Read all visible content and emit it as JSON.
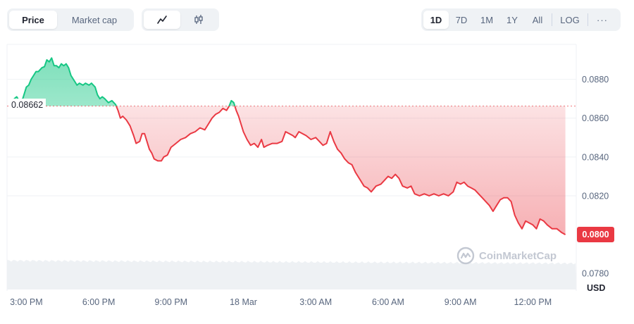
{
  "toolbar": {
    "metric_tabs": [
      {
        "label": "Price",
        "active": true
      },
      {
        "label": "Market cap",
        "active": false
      }
    ],
    "chart_type_icons": [
      {
        "icon": "line-chart-icon",
        "active": true
      },
      {
        "icon": "candlestick-icon",
        "active": false
      }
    ],
    "ranges": [
      "1D",
      "7D",
      "1M",
      "1Y",
      "All"
    ],
    "active_range": "1D",
    "log_label": "LOG",
    "more_label": "···"
  },
  "open_price_label": "0.08662",
  "current_price_label": "0.0800",
  "currency_label": "USD",
  "watermark_text": "CoinMarketCap",
  "colors": {
    "up": "#16c784",
    "down": "#ea3943",
    "grid": "#eff2f5",
    "volume": "#eef1f4"
  },
  "chart_data": {
    "type": "line",
    "title": "",
    "xlabel": "",
    "ylabel": "USD",
    "baseline": 0.08662,
    "ylim": [
      0.0771,
      0.0898
    ],
    "y_ticks": [
      "0.0880",
      "0.0860",
      "0.0840",
      "0.0820",
      "0.0780"
    ],
    "x_ticks": [
      "3:00 PM",
      "6:00 PM",
      "9:00 PM",
      "18 Mar",
      "3:00 AM",
      "6:00 AM",
      "9:00 AM",
      "12:00 PM"
    ],
    "x_tick_hours": [
      0,
      3,
      6,
      9,
      12,
      15,
      18,
      21
    ],
    "x_range_hours": [
      -0.8,
      22.8
    ],
    "grid": true,
    "series": [
      {
        "points": [
          [
            -0.6,
            0.08655
          ],
          [
            -0.5,
            0.087
          ],
          [
            -0.4,
            0.0871
          ],
          [
            -0.3,
            0.0869
          ],
          [
            -0.15,
            0.087
          ],
          [
            0.0,
            0.0876
          ],
          [
            0.1,
            0.0877
          ],
          [
            0.2,
            0.088
          ],
          [
            0.3,
            0.0882
          ],
          [
            0.4,
            0.0884
          ],
          [
            0.5,
            0.0884
          ],
          [
            0.65,
            0.0886
          ],
          [
            0.75,
            0.08865
          ],
          [
            0.85,
            0.089
          ],
          [
            0.95,
            0.0889
          ],
          [
            1.05,
            0.0891
          ],
          [
            1.15,
            0.0887
          ],
          [
            1.25,
            0.0887
          ],
          [
            1.35,
            0.0886
          ],
          [
            1.45,
            0.0888
          ],
          [
            1.55,
            0.0887
          ],
          [
            1.65,
            0.0888
          ],
          [
            1.75,
            0.0886
          ],
          [
            1.85,
            0.0882
          ],
          [
            2.0,
            0.0879
          ],
          [
            2.1,
            0.0877
          ],
          [
            2.2,
            0.0878
          ],
          [
            2.35,
            0.0877
          ],
          [
            2.45,
            0.0878
          ],
          [
            2.6,
            0.0877
          ],
          [
            2.7,
            0.0878
          ],
          [
            2.85,
            0.0876
          ],
          [
            2.95,
            0.0872
          ],
          [
            3.05,
            0.087
          ],
          [
            3.15,
            0.0871
          ],
          [
            3.25,
            0.087
          ],
          [
            3.4,
            0.0868
          ],
          [
            3.55,
            0.0869
          ],
          [
            3.7,
            0.0867
          ],
          [
            3.8,
            0.0864
          ],
          [
            3.9,
            0.086
          ],
          [
            4.0,
            0.0861
          ],
          [
            4.15,
            0.0859
          ],
          [
            4.3,
            0.0856
          ],
          [
            4.45,
            0.0851
          ],
          [
            4.55,
            0.0847
          ],
          [
            4.7,
            0.0848
          ],
          [
            4.8,
            0.0852
          ],
          [
            4.9,
            0.0852
          ],
          [
            5.0,
            0.0848
          ],
          [
            5.1,
            0.0844
          ],
          [
            5.2,
            0.0842
          ],
          [
            5.3,
            0.0839
          ],
          [
            5.45,
            0.0838
          ],
          [
            5.6,
            0.0838
          ],
          [
            5.7,
            0.084
          ],
          [
            5.85,
            0.0841
          ],
          [
            6.0,
            0.0845
          ],
          [
            6.2,
            0.0847
          ],
          [
            6.4,
            0.0849
          ],
          [
            6.6,
            0.085
          ],
          [
            6.8,
            0.0852
          ],
          [
            7.0,
            0.0853
          ],
          [
            7.2,
            0.0855
          ],
          [
            7.4,
            0.0854
          ],
          [
            7.55,
            0.0857
          ],
          [
            7.7,
            0.086
          ],
          [
            7.85,
            0.0862
          ],
          [
            8.0,
            0.0863
          ],
          [
            8.15,
            0.0865
          ],
          [
            8.3,
            0.0864
          ],
          [
            8.4,
            0.0866
          ],
          [
            8.5,
            0.0869
          ],
          [
            8.6,
            0.0868
          ],
          [
            8.7,
            0.0864
          ],
          [
            8.8,
            0.0861
          ],
          [
            8.9,
            0.0857
          ],
          [
            9.0,
            0.0853
          ],
          [
            9.15,
            0.0849
          ],
          [
            9.3,
            0.0846
          ],
          [
            9.45,
            0.0847
          ],
          [
            9.6,
            0.0845
          ],
          [
            9.75,
            0.0849
          ],
          [
            9.85,
            0.0845
          ],
          [
            10.0,
            0.0846
          ],
          [
            10.2,
            0.0847
          ],
          [
            10.4,
            0.0847
          ],
          [
            10.6,
            0.0848
          ],
          [
            10.75,
            0.0853
          ],
          [
            10.9,
            0.0852
          ],
          [
            11.05,
            0.0851
          ],
          [
            11.15,
            0.085
          ],
          [
            11.3,
            0.0853
          ],
          [
            11.45,
            0.0852
          ],
          [
            11.6,
            0.0851
          ],
          [
            11.8,
            0.0849
          ],
          [
            12.0,
            0.085
          ],
          [
            12.15,
            0.0848
          ],
          [
            12.3,
            0.0846
          ],
          [
            12.45,
            0.0847
          ],
          [
            12.6,
            0.0853
          ],
          [
            12.75,
            0.0848
          ],
          [
            12.9,
            0.0844
          ],
          [
            13.05,
            0.0842
          ],
          [
            13.2,
            0.0839
          ],
          [
            13.35,
            0.0837
          ],
          [
            13.5,
            0.0836
          ],
          [
            13.65,
            0.0832
          ],
          [
            13.85,
            0.0828
          ],
          [
            14.0,
            0.0825
          ],
          [
            14.15,
            0.0824
          ],
          [
            14.3,
            0.0822
          ],
          [
            14.5,
            0.0825
          ],
          [
            14.7,
            0.0826
          ],
          [
            14.85,
            0.0828
          ],
          [
            15.0,
            0.083
          ],
          [
            15.15,
            0.0829
          ],
          [
            15.3,
            0.0831
          ],
          [
            15.45,
            0.0829
          ],
          [
            15.6,
            0.0825
          ],
          [
            15.8,
            0.0824
          ],
          [
            15.95,
            0.0825
          ],
          [
            16.1,
            0.0821
          ],
          [
            16.3,
            0.082
          ],
          [
            16.5,
            0.0821
          ],
          [
            16.7,
            0.082
          ],
          [
            16.9,
            0.0821
          ],
          [
            17.1,
            0.082
          ],
          [
            17.3,
            0.0821
          ],
          [
            17.5,
            0.082
          ],
          [
            17.7,
            0.0822
          ],
          [
            17.85,
            0.0827
          ],
          [
            18.0,
            0.0826
          ],
          [
            18.15,
            0.0827
          ],
          [
            18.3,
            0.0825
          ],
          [
            18.45,
            0.0824
          ],
          [
            18.6,
            0.0823
          ],
          [
            18.75,
            0.0821
          ],
          [
            18.9,
            0.0819
          ],
          [
            19.05,
            0.0817
          ],
          [
            19.2,
            0.0815
          ],
          [
            19.35,
            0.0812
          ],
          [
            19.5,
            0.0815
          ],
          [
            19.65,
            0.0818
          ],
          [
            19.8,
            0.0819
          ],
          [
            19.95,
            0.0819
          ],
          [
            20.1,
            0.0817
          ],
          [
            20.25,
            0.081
          ],
          [
            20.4,
            0.0806
          ],
          [
            20.55,
            0.0803
          ],
          [
            20.7,
            0.0807
          ],
          [
            20.85,
            0.0806
          ],
          [
            21.0,
            0.0805
          ],
          [
            21.15,
            0.0803
          ],
          [
            21.3,
            0.0808
          ],
          [
            21.45,
            0.0807
          ],
          [
            21.6,
            0.0805
          ],
          [
            21.8,
            0.0803
          ],
          [
            22.0,
            0.0803
          ],
          [
            22.2,
            0.0801
          ],
          [
            22.35,
            0.08
          ]
        ]
      }
    ],
    "current_value": 0.08
  }
}
